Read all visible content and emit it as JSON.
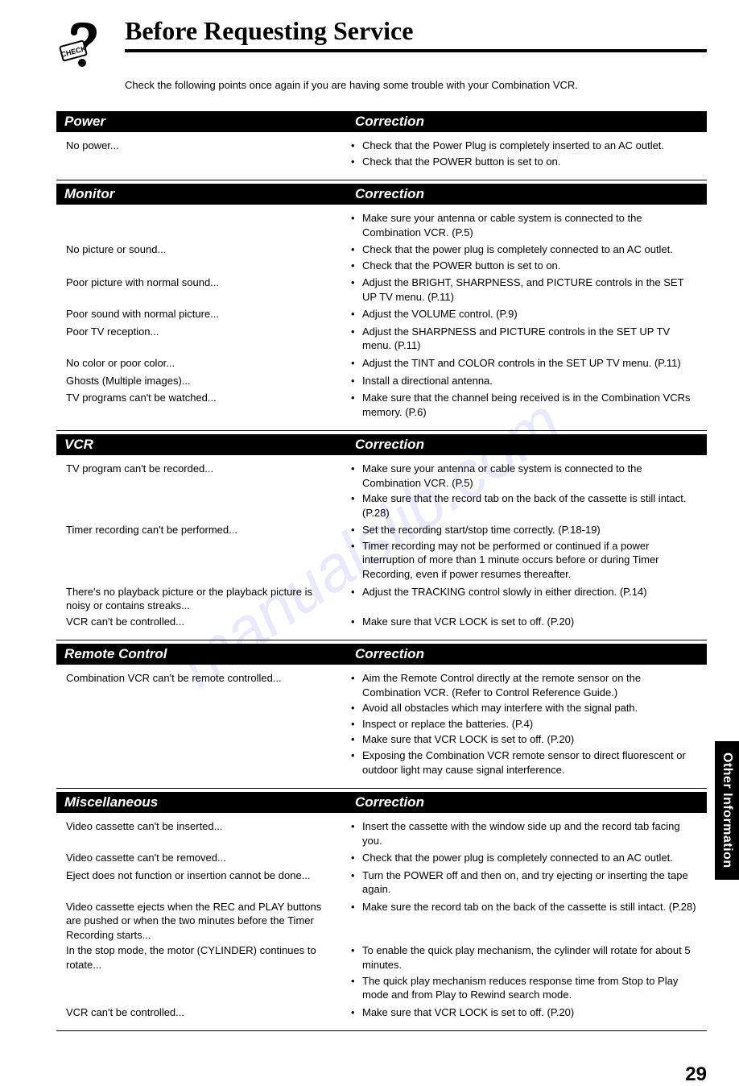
{
  "title": "Before Requesting Service",
  "intro": "Check the following points once again if you are having some trouble with your Combination VCR.",
  "correction_label": "Correction",
  "sections": [
    {
      "heading": "Power",
      "rows": [
        {
          "problem": "No power...",
          "corrections": [
            "Check that the Power Plug is completely inserted to an AC outlet.",
            "Check that the POWER button is set to on."
          ]
        }
      ]
    },
    {
      "heading": "Monitor",
      "rows": [
        {
          "problem": "",
          "corrections": [
            "Make sure your antenna or cable system is connected to the Combination VCR.  (P.5)"
          ]
        },
        {
          "problem": "No picture or sound...",
          "corrections": [
            "Check that the power plug is completely connected to an AC outlet.",
            "Check that the POWER button is set to on."
          ]
        },
        {
          "problem": "Poor picture with normal sound...",
          "corrections": [
            "Adjust the BRIGHT, SHARPNESS, and PICTURE controls in the SET UP TV menu.  (P.11)"
          ]
        },
        {
          "problem": "Poor sound with normal picture...",
          "corrections": [
            "Adjust the VOLUME control.  (P.9)"
          ]
        },
        {
          "problem": "Poor TV reception...",
          "corrections": [
            "Adjust the SHARPNESS and PICTURE controls in the SET UP TV menu.  (P.11)"
          ]
        },
        {
          "problem": "No color or poor color...",
          "corrections": [
            "Adjust the TINT and COLOR controls in the SET UP TV menu.  (P.11)"
          ]
        },
        {
          "problem": "Ghosts (Multiple images)...",
          "corrections": [
            "Install a directional antenna."
          ]
        },
        {
          "problem": "TV programs can't be watched...",
          "corrections": [
            "Make sure that the channel being received is in the Combination VCRs memory.  (P.6)"
          ]
        }
      ]
    },
    {
      "heading": "VCR",
      "rows": [
        {
          "problem": "TV program can't be recorded...",
          "corrections": [
            "Make sure your antenna or cable system is connected to the Combination VCR.  (P.5)",
            "Make sure that the record tab on the back of the cassette is still intact.  (P.28)"
          ]
        },
        {
          "problem": "Timer recording can't be performed...",
          "corrections": [
            "Set the recording start/stop time correctly.  (P.18-19)",
            "Timer recording may not be performed or continued if a power interruption of more than 1 minute occurs before or during Timer Recording, even if power resumes thereafter."
          ]
        },
        {
          "problem": "There's no playback picture or the playback picture is noisy or contains streaks...",
          "corrections": [
            "Adjust the TRACKING control slowly in either direction.  (P.14)"
          ]
        },
        {
          "problem": "VCR can't be controlled...",
          "corrections": [
            "Make sure that VCR LOCK is set to off. (P.20)"
          ]
        }
      ]
    },
    {
      "heading": "Remote Control",
      "rows": [
        {
          "problem": "Combination VCR can't be remote controlled...",
          "corrections": [
            "Aim the Remote Control directly at the remote sensor on the Combination VCR. (Refer to Control Reference Guide.)",
            "Avoid all obstacles which may interfere with the signal path.",
            "Inspect or replace the batteries. (P.4)",
            "Make sure that VCR LOCK is set to off. (P.20)",
            "Exposing the Combination VCR remote sensor to direct fluorescent or outdoor light may cause signal interference."
          ]
        }
      ]
    },
    {
      "heading": "Miscellaneous",
      "rows": [
        {
          "problem": "Video cassette can't be inserted...",
          "corrections": [
            "Insert the cassette with the window side up and the record tab facing you."
          ]
        },
        {
          "problem": "Video cassette can't be removed...",
          "corrections": [
            "Check that the power plug is completely connected to an AC outlet."
          ]
        },
        {
          "problem": "Eject does not function or insertion cannot be done...",
          "corrections": [
            "Turn the POWER off and then on, and try ejecting or inserting the tape again."
          ]
        },
        {
          "problem": "Video cassette ejects when the REC and PLAY buttons are pushed or when the two minutes before the Timer Recording starts...",
          "corrections": [
            "Make sure the record tab on the back of the cassette is still intact. (P.28)"
          ]
        },
        {
          "problem": "In the stop mode, the motor (CYLINDER) continues to rotate...",
          "corrections": [
            "To enable the quick play mechanism, the cylinder will rotate for about 5 minutes.",
            "The quick play mechanism reduces response time from Stop to Play mode and from Play to Rewind search mode."
          ]
        },
        {
          "problem": "VCR can't be controlled...",
          "corrections": [
            "Make sure that VCR LOCK is set to off. (P.20)"
          ]
        }
      ]
    }
  ],
  "side_tab": "Other Information",
  "page_number": "29",
  "watermark": "manualslib.com",
  "icon_label": "CHECK"
}
